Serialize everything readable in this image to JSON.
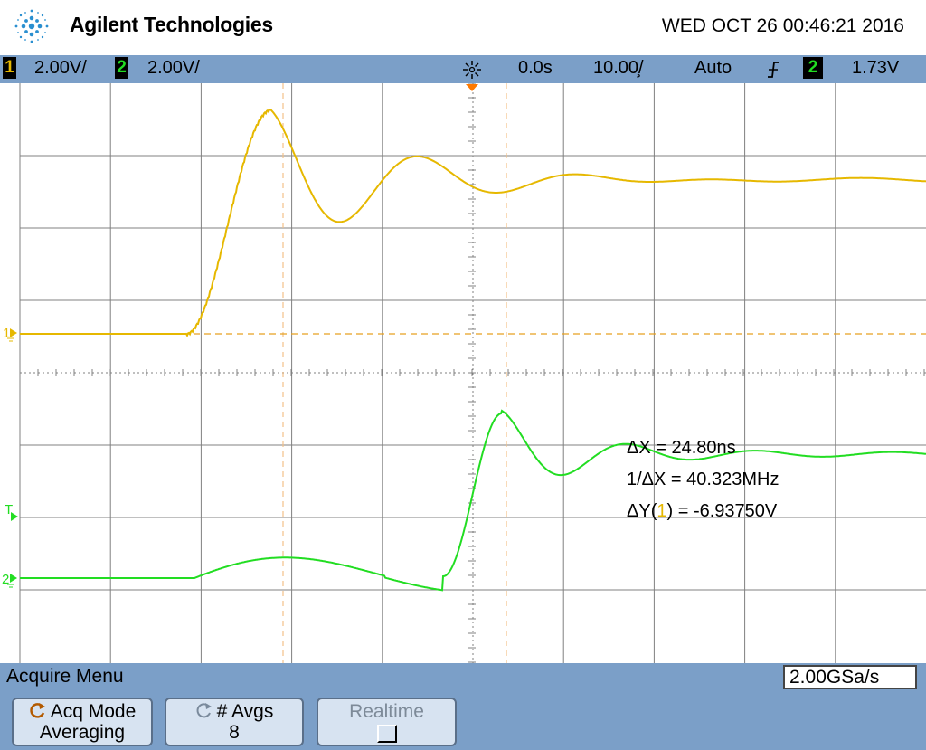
{
  "header": {
    "brand": "Agilent Technologies",
    "datetime": "WED OCT 26 00:46:21 2016"
  },
  "statusbar": {
    "ch1_number": "1",
    "ch1_scale": "2.00V/",
    "ch2_number": "2",
    "ch2_scale": "2.00V/",
    "time_delay": "0.0s",
    "time_scale": "10.00̧/",
    "trigger_mode": "Auto",
    "trigger_slope_icon": "rising-edge-icon",
    "trigger_source": "2",
    "trigger_level": "1.73V"
  },
  "colors": {
    "ch1": "#e6b800",
    "ch2": "#22dd22",
    "cursor": "#f2c089",
    "grid": "#808080",
    "panel": "#7b9fc8"
  },
  "markers": {
    "ch1_marker": "1",
    "ch2_marker": "2",
    "trigger_marker": "T"
  },
  "measurements": {
    "delta_x": "ΔX = 24.80ns",
    "inv_delta_x": "1/ΔX = 40.323MHz",
    "delta_y_prefix": "ΔY(",
    "delta_y_channel": "1",
    "delta_y_suffix": ") = -6.93750V"
  },
  "acquire": {
    "menu_title": "Acquire Menu",
    "sample_rate": "2.00GSa/s",
    "acq_mode_label": "Acq Mode",
    "acq_mode_value": "Averaging",
    "avgs_label": "# Avgs",
    "avgs_value": "8",
    "realtime_label": "Realtime"
  }
}
